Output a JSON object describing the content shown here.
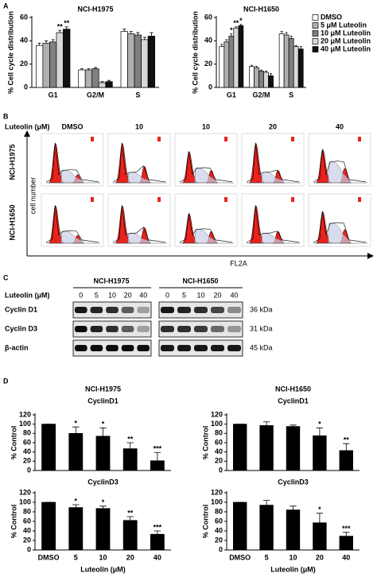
{
  "labels": {
    "a": "A",
    "b": "B",
    "c": "C",
    "d": "D"
  },
  "chart_data": [
    {
      "type": "bar",
      "title": "NCI-H1975",
      "y_label": "% Cell cycle distribution",
      "categories": [
        "G1",
        "G2/M",
        "S"
      ],
      "ylim": [
        0,
        60
      ],
      "yticks": [
        0,
        20,
        40,
        60
      ],
      "series": [
        {
          "color": "#ffffff",
          "values": [
            36,
            15,
            48
          ],
          "errors": [
            2,
            1,
            2
          ],
          "stars": [
            null,
            null,
            null
          ]
        },
        {
          "color": "#b0b0b0",
          "values": [
            38,
            15,
            46
          ],
          "errors": [
            2,
            1,
            2
          ],
          "stars": [
            null,
            null,
            null
          ]
        },
        {
          "color": "#808080",
          "values": [
            39,
            16,
            45
          ],
          "errors": [
            2,
            1,
            2
          ],
          "stars": [
            null,
            null,
            null
          ]
        },
        {
          "color": "#d8d8d8",
          "values": [
            47,
            4,
            41
          ],
          "errors": [
            2,
            1,
            2
          ],
          "stars": [
            "**",
            null,
            null
          ]
        },
        {
          "color": "#111111",
          "values": [
            50,
            5,
            44
          ],
          "errors": [
            2,
            1,
            3
          ],
          "stars": [
            "**",
            null,
            null
          ]
        }
      ]
    },
    {
      "type": "bar",
      "title": "NCI-H1650",
      "y_label": "% Cell cycle distribution",
      "categories": [
        "G1",
        "G2/M",
        "S"
      ],
      "ylim": [
        0,
        60
      ],
      "yticks": [
        0,
        20,
        40,
        60
      ],
      "legend": "right",
      "series": [
        {
          "name": "DMSO",
          "color": "#ffffff",
          "values": [
            35,
            18,
            46
          ],
          "errors": [
            2,
            1,
            2
          ],
          "stars": [
            null,
            null,
            null
          ]
        },
        {
          "name": "5 μM Luteolin",
          "color": "#b0b0b0",
          "values": [
            39,
            17,
            45
          ],
          "errors": [
            2,
            1,
            2
          ],
          "stars": [
            null,
            null,
            null
          ]
        },
        {
          "name": "10 μM Luteolin",
          "color": "#808080",
          "values": [
            44,
            14,
            42
          ],
          "errors": [
            2,
            1,
            2
          ],
          "stars": [
            "*",
            null,
            null
          ]
        },
        {
          "name": "20 μM Luteolin",
          "color": "#d8d8d8",
          "values": [
            51,
            13,
            35
          ],
          "errors": [
            1,
            1,
            1
          ],
          "stars": [
            "**",
            null,
            null
          ]
        },
        {
          "name": "40 μM Luteolin",
          "color": "#111111",
          "values": [
            53,
            10,
            33
          ],
          "errors": [
            1,
            2,
            2
          ],
          "stars": [
            "*",
            null,
            null
          ]
        }
      ]
    },
    {
      "type": "bar",
      "title": "NCI-H1975",
      "subtitle": "CyclinD1",
      "y_label": "% Control",
      "color": "#000000",
      "categories": [
        null,
        null,
        null,
        null,
        null
      ],
      "ylim": [
        0,
        120
      ],
      "yticks": [
        0,
        20,
        40,
        60,
        80,
        100,
        120
      ],
      "values": [
        100,
        80,
        74,
        47,
        21
      ],
      "errors": [
        0,
        14,
        18,
        13,
        18
      ],
      "stars": [
        null,
        "*",
        "*",
        "**",
        "***"
      ]
    },
    {
      "type": "bar",
      "title": "NCI-H1650",
      "subtitle": "CyclinD1",
      "y_label": "% Control",
      "color": "#000000",
      "categories": [
        null,
        null,
        null,
        null,
        null
      ],
      "ylim": [
        0,
        120
      ],
      "yticks": [
        0,
        20,
        40,
        60,
        80,
        100,
        120
      ],
      "values": [
        100,
        97,
        95,
        75,
        43
      ],
      "errors": [
        0,
        8,
        3,
        17,
        15
      ],
      "stars": [
        null,
        null,
        null,
        "*",
        "**"
      ]
    },
    {
      "type": "bar",
      "title": "CyclinD3",
      "y_label": "% Control",
      "x_label": "Luteolin (μM)",
      "color": "#000000",
      "categories": [
        "DMSO",
        "5",
        "10",
        "20",
        "40"
      ],
      "ylim": [
        0,
        120
      ],
      "yticks": [
        0,
        20,
        40,
        60,
        80,
        100,
        120
      ],
      "values": [
        100,
        89,
        87,
        62,
        33
      ],
      "errors": [
        0,
        6,
        5,
        8,
        7
      ],
      "stars": [
        null,
        "*",
        "*",
        "**",
        "***"
      ]
    },
    {
      "type": "bar",
      "title": "CyclinD3",
      "y_label": "% Control",
      "x_label": "Luteolin (μM)",
      "color": "#000000",
      "categories": [
        "DMSO",
        "5",
        "10",
        "20",
        "40"
      ],
      "ylim": [
        0,
        120
      ],
      "yticks": [
        0,
        20,
        40,
        60,
        80,
        100,
        120
      ],
      "values": [
        100,
        94,
        84,
        57,
        29
      ],
      "errors": [
        0,
        10,
        8,
        20,
        8
      ],
      "stars": [
        null,
        null,
        null,
        "*",
        "***"
      ]
    }
  ],
  "flow": {
    "dose_label": "Luteolin (μM)",
    "doses": [
      "DMSO",
      "10",
      "10",
      "20",
      "40"
    ],
    "rows": [
      "NCI-H1975",
      "NCI-H1650"
    ],
    "y_label": "cell number",
    "x_label": "FL2A"
  },
  "blot": {
    "dose_label": "Luteolin (μM)",
    "groups": [
      "NCI-H1975",
      "NCI-H1650"
    ],
    "doses": [
      "0",
      "5",
      "10",
      "20",
      "40"
    ],
    "proteins": [
      "Cyclin D1",
      "Cyclin D3",
      "β-actin"
    ],
    "sizes": [
      "36 kDa",
      "31 kDa",
      "45 kDa"
    ]
  }
}
